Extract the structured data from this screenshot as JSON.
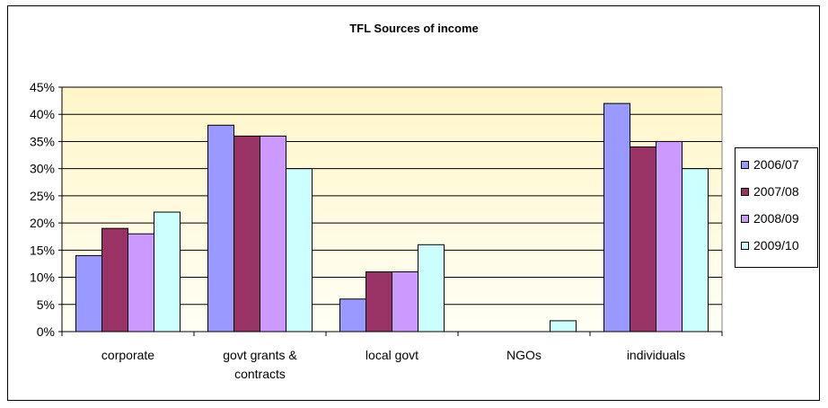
{
  "chart_data": {
    "type": "bar",
    "title": "TFL Sources of income",
    "xlabel": "",
    "ylabel": "",
    "categories": [
      [
        "corporate"
      ],
      [
        "govt grants &",
        "contracts"
      ],
      [
        "local govt"
      ],
      [
        "NGOs"
      ],
      [
        "individuals"
      ]
    ],
    "series": [
      {
        "name": "2006/07",
        "color": "#9999FF",
        "values": [
          14,
          38,
          6,
          0,
          42
        ]
      },
      {
        "name": "2007/08",
        "color": "#993366",
        "values": [
          19,
          36,
          11,
          0,
          34
        ]
      },
      {
        "name": "2008/09",
        "color": "#CC99FF",
        "values": [
          18,
          36,
          11,
          0,
          35
        ]
      },
      {
        "name": "2009/10",
        "color": "#CCFFFF",
        "values": [
          22,
          30,
          16,
          2,
          30
        ]
      }
    ],
    "ylim": [
      0,
      45
    ],
    "yticks": [
      "0%",
      "5%",
      "10%",
      "15%",
      "20%",
      "25%",
      "30%",
      "35%",
      "40%",
      "45%"
    ],
    "grid": true,
    "legend": "right",
    "plot_background": "#FFFFCC"
  }
}
